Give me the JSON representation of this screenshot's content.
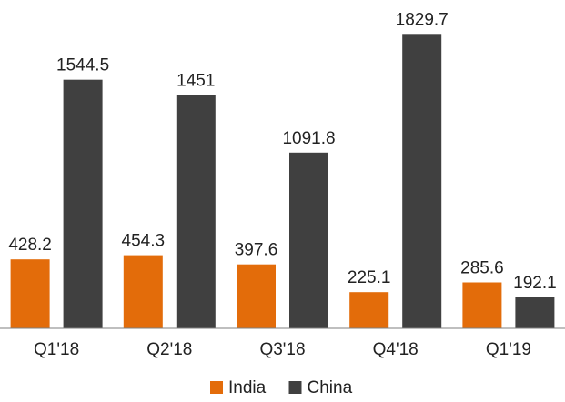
{
  "chart_data": {
    "type": "bar",
    "categories": [
      "Q1'18",
      "Q2'18",
      "Q3'18",
      "Q4'18",
      "Q1'19"
    ],
    "series": [
      {
        "name": "India",
        "color": "#E36C0A",
        "values": [
          428.2,
          454.3,
          397.6,
          225.1,
          285.6
        ],
        "labels": [
          "428.2",
          "454.3",
          "397.6",
          "225.1",
          "285.6"
        ]
      },
      {
        "name": "China",
        "color": "#404040",
        "values": [
          1544.5,
          1451,
          1091.8,
          1829.7,
          192.1
        ],
        "labels": [
          "1544.5",
          "1451",
          "1091.8",
          "1829.7",
          "192.1"
        ]
      }
    ],
    "title": "",
    "xlabel": "",
    "ylabel": "",
    "ylim": [
      0,
      1950
    ],
    "grid": false,
    "legend": "bottom-center",
    "axis_color": "#7f7f7f"
  }
}
